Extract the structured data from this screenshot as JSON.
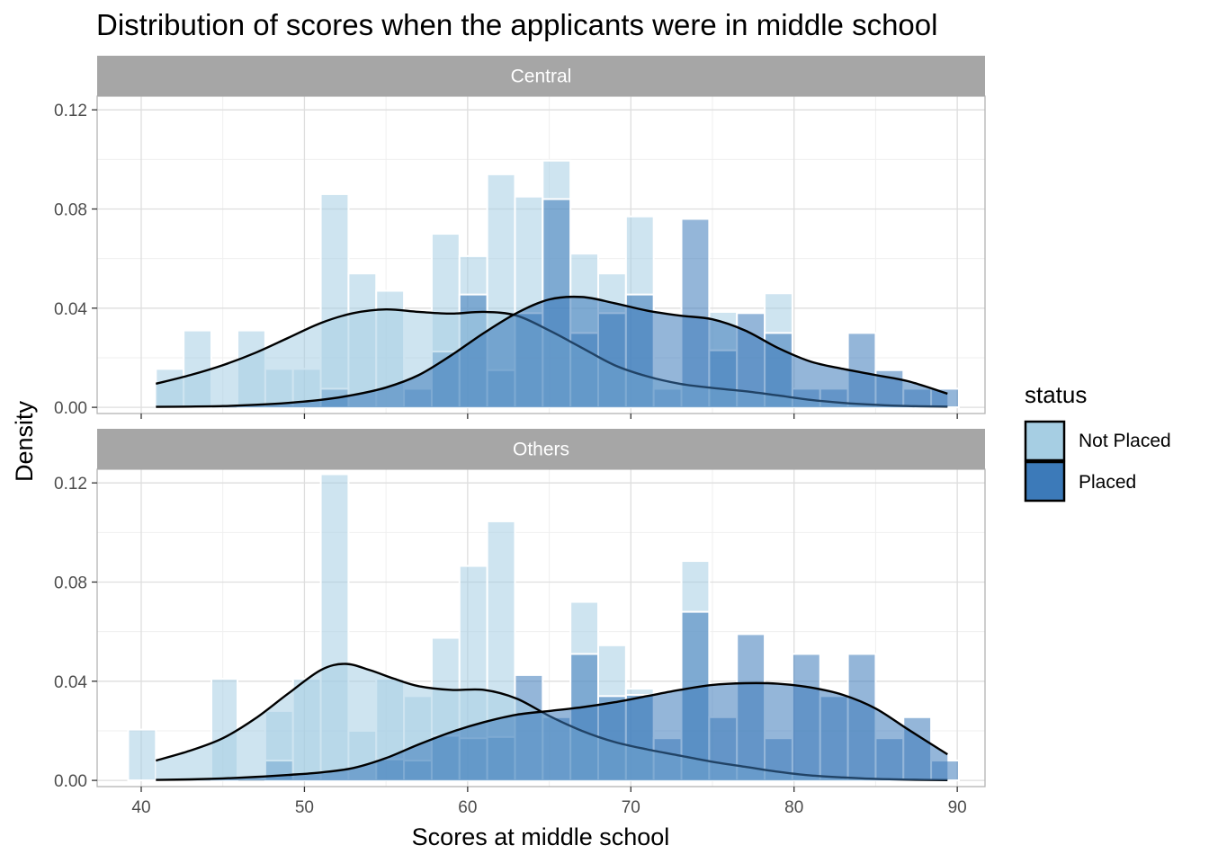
{
  "colors": {
    "not_placed": "#a6cee3",
    "placed": "#3c7ab9",
    "strip_bg": "#a6a6a6",
    "grid_major": "#dedede",
    "grid_minor": "#efefef",
    "panel_border": "#b3b3b3",
    "density_line": "#000000",
    "bar_outline": "#ffffff"
  },
  "chart_data": {
    "type": "histogram+density",
    "title": "Distribution of scores when the applicants were in middle school",
    "xlabel": "Scores at middle school",
    "ylabel": "Density",
    "xlim": [
      37.3,
      91.7
    ],
    "ylim": [
      -0.0025,
      0.1255
    ],
    "x_ticks": [
      40,
      50,
      60,
      70,
      80,
      90
    ],
    "x_tick_labels": [
      "40",
      "50",
      "60",
      "70",
      "80",
      "90"
    ],
    "y_ticks": [
      0,
      0.04,
      0.08,
      0.12
    ],
    "y_tick_labels": [
      "0.00",
      "0.04",
      "0.08",
      "0.12"
    ],
    "grid": true,
    "bins": [
      [
        39.2,
        40.9
      ],
      [
        40.9,
        42.6
      ],
      [
        42.6,
        44.3
      ],
      [
        44.3,
        45.9
      ],
      [
        45.9,
        47.6
      ],
      [
        47.6,
        49.3
      ],
      [
        49.3,
        51.0
      ],
      [
        51.0,
        52.7
      ],
      [
        52.7,
        54.4
      ],
      [
        54.4,
        56.1
      ],
      [
        56.1,
        57.8
      ],
      [
        57.8,
        59.5
      ],
      [
        59.5,
        61.2
      ],
      [
        61.2,
        62.9
      ],
      [
        62.9,
        64.6
      ],
      [
        64.6,
        66.3
      ],
      [
        66.3,
        68.0
      ],
      [
        68.0,
        69.7
      ],
      [
        69.7,
        71.4
      ],
      [
        71.4,
        73.1
      ],
      [
        73.1,
        74.8
      ],
      [
        74.8,
        76.5
      ],
      [
        76.5,
        78.2
      ],
      [
        78.2,
        79.9
      ],
      [
        79.9,
        81.6
      ],
      [
        81.6,
        83.3
      ],
      [
        83.3,
        85.0
      ],
      [
        85.0,
        86.7
      ],
      [
        86.7,
        88.4
      ],
      [
        88.4,
        90.1
      ]
    ],
    "legend": {
      "title": "status",
      "position": "right",
      "items": [
        {
          "label": "Not Placed",
          "color_key": "not_placed"
        },
        {
          "label": "Placed",
          "color_key": "placed"
        }
      ]
    },
    "facets": [
      {
        "label": "Central",
        "not_placed_hist": [
          0,
          0.0155,
          0.031,
          0,
          0.031,
          0.0155,
          0.0155,
          0.086,
          0.054,
          0.047,
          0,
          0.07,
          0.061,
          0.094,
          0.085,
          0.0995,
          0.062,
          0.054,
          0.077,
          0,
          0,
          0.0385,
          0,
          0.046,
          0,
          0,
          0,
          0,
          0,
          0
        ],
        "placed_hist": [
          0,
          0,
          0,
          0,
          0,
          0,
          0,
          0.0075,
          0,
          0,
          0.0075,
          0.0225,
          0.0455,
          0.015,
          0.038,
          0.084,
          0.03,
          0.038,
          0.0455,
          0.0075,
          0.076,
          0.023,
          0.038,
          0.03,
          0.0075,
          0.0075,
          0.03,
          0.015,
          0.0075,
          0.0075
        ],
        "not_placed_density": {
          "x": [
            40.9,
            43,
            45,
            47,
            49,
            51,
            53,
            55,
            57,
            59,
            61,
            63,
            65,
            67,
            69,
            71,
            73,
            75,
            77,
            79,
            81,
            83,
            85,
            87,
            89.4
          ],
          "y": [
            0.0095,
            0.013,
            0.017,
            0.022,
            0.028,
            0.034,
            0.038,
            0.0395,
            0.0385,
            0.0378,
            0.0385,
            0.037,
            0.031,
            0.024,
            0.017,
            0.0125,
            0.0095,
            0.0078,
            0.0065,
            0.0048,
            0.003,
            0.0018,
            0.001,
            0.0005,
            0.0003
          ]
        },
        "placed_density": {
          "x": [
            40.9,
            43,
            45,
            47,
            49,
            51,
            53,
            55,
            57,
            59,
            61,
            63,
            65,
            67,
            69,
            71,
            73,
            75,
            77,
            79,
            81,
            83,
            85,
            87,
            89.4
          ],
          "y": [
            0.0002,
            0.0003,
            0.0005,
            0.001,
            0.0018,
            0.003,
            0.005,
            0.008,
            0.013,
            0.021,
            0.03,
            0.038,
            0.0435,
            0.0445,
            0.042,
            0.039,
            0.037,
            0.0355,
            0.031,
            0.024,
            0.0185,
            0.0155,
            0.013,
            0.0105,
            0.0055
          ]
        }
      },
      {
        "label": "Others",
        "not_placed_hist": [
          0.0205,
          0,
          0,
          0.041,
          0,
          0.028,
          0.041,
          0.1235,
          0.02,
          0.041,
          0.034,
          0.0575,
          0.0865,
          0.1045,
          0,
          0,
          0.072,
          0.0545,
          0.037,
          0,
          0.0885,
          0,
          0,
          0,
          0,
          0,
          0,
          0,
          0,
          0
        ],
        "placed_hist": [
          0,
          0,
          0,
          0,
          0,
          0.008,
          0,
          0,
          0,
          0.0085,
          0.008,
          0.018,
          0.017,
          0.0175,
          0.0425,
          0.0255,
          0.051,
          0.034,
          0.0345,
          0.017,
          0.068,
          0.0255,
          0.059,
          0.017,
          0.051,
          0.034,
          0.051,
          0.017,
          0.0255,
          0.008
        ],
        "not_placed_density": {
          "x": [
            40.9,
            43,
            45,
            47,
            49,
            51,
            52.5,
            54,
            55.5,
            57,
            59,
            61,
            63,
            65,
            67,
            69,
            71,
            73,
            75,
            77,
            79,
            81,
            83,
            85,
            87,
            89.4
          ],
          "y": [
            0.008,
            0.012,
            0.017,
            0.025,
            0.035,
            0.0445,
            0.047,
            0.0445,
            0.041,
            0.038,
            0.0365,
            0.0365,
            0.033,
            0.026,
            0.02,
            0.0155,
            0.0125,
            0.01,
            0.0075,
            0.0055,
            0.0035,
            0.002,
            0.0012,
            0.0006,
            0.0003,
            0.0001
          ]
        },
        "placed_density": {
          "x": [
            40.9,
            43,
            45,
            47,
            49,
            51,
            53,
            55,
            57,
            59,
            61,
            63,
            65,
            67,
            69,
            71,
            73,
            75,
            77,
            79,
            81,
            83,
            85,
            87,
            89.4
          ],
          "y": [
            0.0002,
            0.0004,
            0.0008,
            0.0014,
            0.0022,
            0.0032,
            0.005,
            0.009,
            0.0145,
            0.0195,
            0.0235,
            0.0265,
            0.028,
            0.0295,
            0.0315,
            0.034,
            0.0365,
            0.0385,
            0.0392,
            0.039,
            0.0375,
            0.0345,
            0.029,
            0.0205,
            0.0105
          ]
        }
      }
    ]
  }
}
